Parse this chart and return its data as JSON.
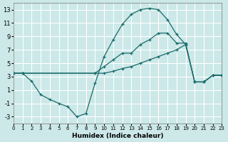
{
  "xlabel": "Humidex (Indice chaleur)",
  "bg_color": "#cce8e8",
  "grid_color": "#ffffff",
  "line_color": "#1a6b6b",
  "marker": "+",
  "xlim": [
    0,
    23
  ],
  "ylim": [
    -4,
    14
  ],
  "xticks": [
    0,
    1,
    2,
    3,
    4,
    5,
    6,
    7,
    8,
    9,
    10,
    11,
    12,
    13,
    14,
    15,
    16,
    17,
    18,
    19,
    20,
    21,
    22,
    23
  ],
  "yticks": [
    -3,
    -1,
    1,
    3,
    5,
    7,
    9,
    11,
    13
  ],
  "series": [
    {
      "x": [
        0,
        1,
        2,
        3,
        4,
        5,
        6,
        7,
        8,
        9,
        10,
        11,
        12,
        13,
        14,
        15,
        16,
        17,
        18,
        19,
        20,
        21,
        22,
        23
      ],
      "y": [
        3.5,
        3.5,
        2.3,
        0.3,
        -0.4,
        -1.0,
        -1.5,
        -3.0,
        -2.5,
        2.0,
        6.0,
        8.5,
        10.8,
        12.3,
        13.0,
        13.2,
        13.0,
        11.5,
        9.3,
        7.8,
        2.2,
        2.2,
        3.2,
        3.2
      ]
    },
    {
      "x": [
        0,
        1,
        9,
        10,
        11,
        12,
        13,
        14,
        15,
        16,
        17,
        18,
        19,
        20,
        21,
        22,
        23
      ],
      "y": [
        3.5,
        3.5,
        3.5,
        4.5,
        5.5,
        6.5,
        6.5,
        7.8,
        8.5,
        9.5,
        9.5,
        8.0,
        8.0,
        2.2,
        2.2,
        3.2,
        3.2
      ]
    },
    {
      "x": [
        0,
        1,
        9,
        10,
        11,
        12,
        13,
        14,
        15,
        16,
        17,
        18,
        19,
        20,
        21,
        22,
        23
      ],
      "y": [
        3.5,
        3.5,
        3.5,
        3.5,
        3.8,
        4.2,
        4.5,
        5.0,
        5.5,
        6.0,
        6.5,
        7.0,
        7.8,
        2.2,
        2.2,
        3.2,
        3.2
      ]
    }
  ]
}
